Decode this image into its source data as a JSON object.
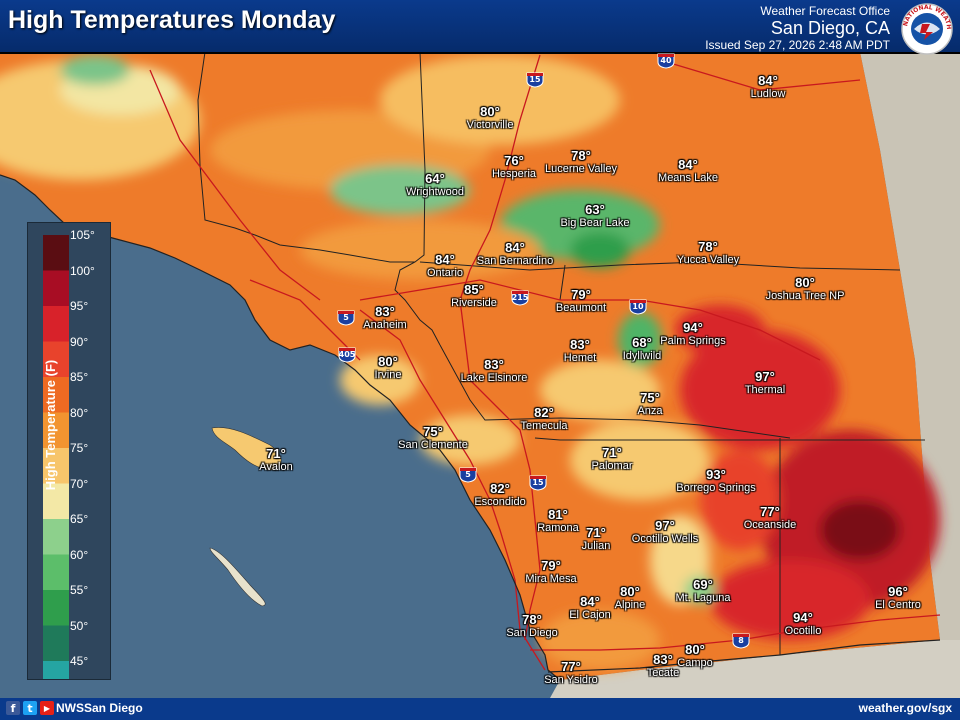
{
  "header": {
    "title": "High Temperatures Monday",
    "office_line1": "Weather Forecast Office",
    "office_line2": "San Diego, CA",
    "issued": "Issued Sep 27, 2026 2:48 AM PDT",
    "logo_text": "NATIONAL WEATHER SERVICE",
    "logo_color": "#1552a6"
  },
  "legend": {
    "title": "High Temperature (F)",
    "ticks": [
      "105°",
      "100°",
      "95°",
      "90°",
      "85°",
      "80°",
      "75°",
      "70°",
      "65°",
      "60°",
      "55°",
      "50°",
      "45°"
    ],
    "colors": [
      "#5a0d12",
      "#a80d24",
      "#d8222a",
      "#e8432c",
      "#ee6a22",
      "#f29430",
      "#f7c56b",
      "#f3e8a6",
      "#8dd08c",
      "#5cbe6a",
      "#2f9e4c",
      "#1f7a5a",
      "#25a5a2"
    ]
  },
  "cities": [
    {
      "name": "Victorville",
      "temp": "80°"
    },
    {
      "name": "Hesperia",
      "temp": "76°"
    },
    {
      "name": "Lucerne Valley",
      "temp": "78°"
    },
    {
      "name": "Means Lake",
      "temp": "84°"
    },
    {
      "name": "Ludlow",
      "temp": "84°"
    },
    {
      "name": "Wrightwood",
      "temp": "64°"
    },
    {
      "name": "Big Bear Lake",
      "temp": "63°"
    },
    {
      "name": "Yucca Valley",
      "temp": "78°"
    },
    {
      "name": "Joshua Tree NP",
      "temp": "80°"
    },
    {
      "name": "Ontario",
      "temp": "84°"
    },
    {
      "name": "San Bernardino",
      "temp": "84°"
    },
    {
      "name": "Riverside",
      "temp": "85°"
    },
    {
      "name": "Beaumont",
      "temp": "79°"
    },
    {
      "name": "Anaheim",
      "temp": "83°"
    },
    {
      "name": "Irvine",
      "temp": "80°"
    },
    {
      "name": "Lake Elsinore",
      "temp": "83°"
    },
    {
      "name": "Hemet",
      "temp": "83°"
    },
    {
      "name": "Idyllwild",
      "temp": "68°"
    },
    {
      "name": "Palm Springs",
      "temp": "94°"
    },
    {
      "name": "Thermal",
      "temp": "97°"
    },
    {
      "name": "Anza",
      "temp": "75°"
    },
    {
      "name": "Temecula",
      "temp": "82°"
    },
    {
      "name": "San Clemente",
      "temp": "75°"
    },
    {
      "name": "Avalon",
      "temp": "71°"
    },
    {
      "name": "Palomar",
      "temp": "71°"
    },
    {
      "name": "Borrego Springs",
      "temp": "93°"
    },
    {
      "name": "Oceanside",
      "temp": "77°"
    },
    {
      "name": "Escondido",
      "temp": "82°"
    },
    {
      "name": "Ramona",
      "temp": "81°"
    },
    {
      "name": "Julian",
      "temp": "71°"
    },
    {
      "name": "Ocotillo Wells",
      "temp": "97°"
    },
    {
      "name": "Mira Mesa",
      "temp": "79°"
    },
    {
      "name": "El Cajon",
      "temp": "84°"
    },
    {
      "name": "Alpine",
      "temp": "80°"
    },
    {
      "name": "Mt. Laguna",
      "temp": "69°"
    },
    {
      "name": "San Diego",
      "temp": "78°"
    },
    {
      "name": "Ocotillo",
      "temp": "94°"
    },
    {
      "name": "El Centro",
      "temp": "96°"
    },
    {
      "name": "Tecate",
      "temp": "83°"
    },
    {
      "name": "Campo",
      "temp": "80°"
    },
    {
      "name": "San Ysidro",
      "temp": "77°"
    }
  ],
  "highways": [
    "15",
    "40",
    "10",
    "5",
    "405",
    "215",
    "5",
    "15",
    "8"
  ],
  "footer": {
    "social": [
      "f",
      "t",
      "▶"
    ],
    "handle": "NWSSan Diego",
    "url": "weather.gov/sgx"
  }
}
